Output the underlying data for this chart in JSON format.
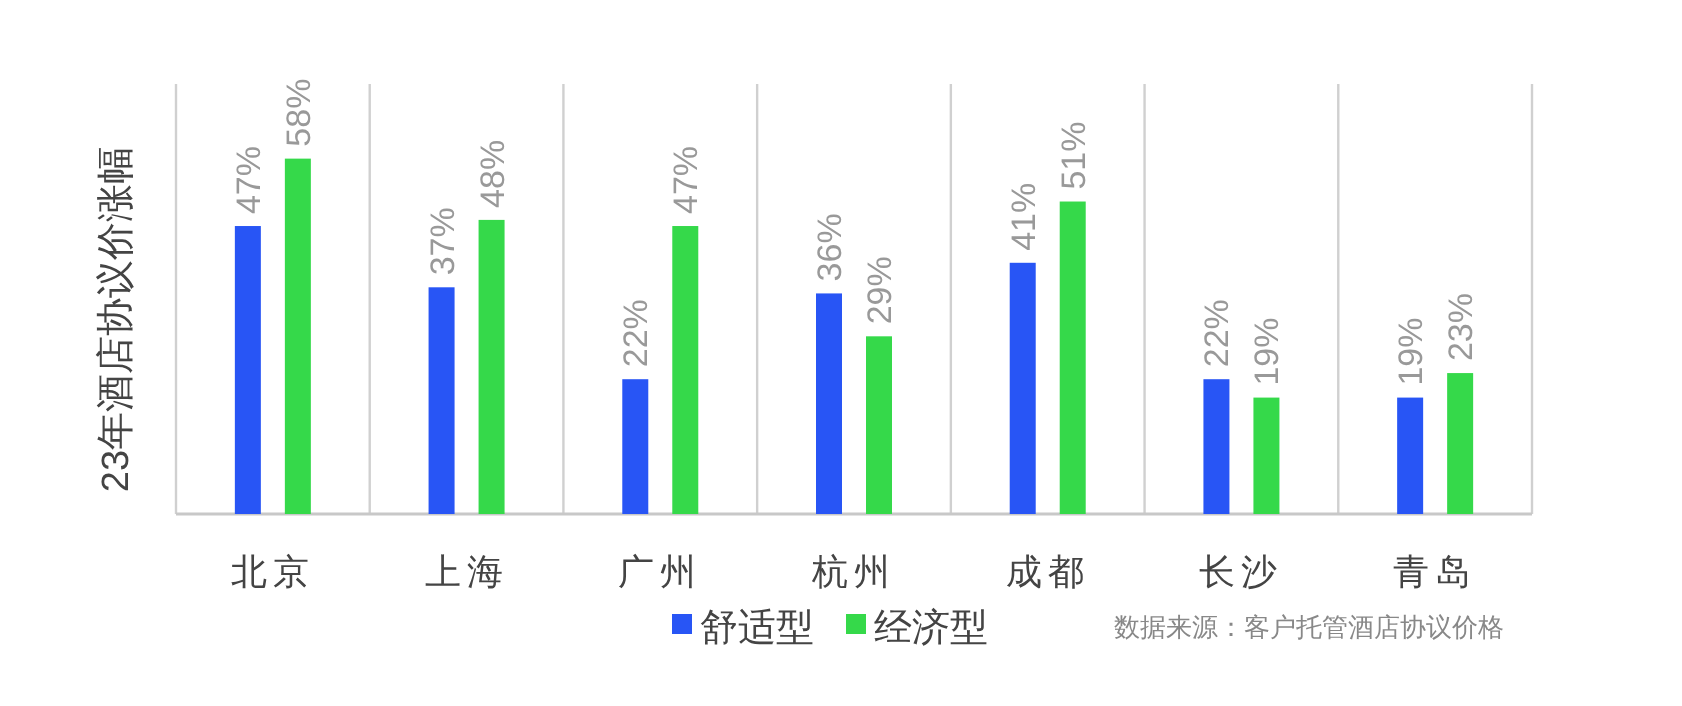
{
  "chart_data": {
    "type": "bar",
    "ylabel": "23年酒店协议价涨幅",
    "categories": [
      "北京",
      "上海",
      "广州",
      "杭州",
      "成都",
      "长沙",
      "青岛"
    ],
    "series": [
      {
        "name": "舒适型",
        "color": "#2855f5",
        "values": [
          47,
          37,
          22,
          36,
          41,
          22,
          19
        ],
        "value_labels": [
          "47%",
          "37%",
          "22%",
          "36%",
          "41%",
          "22%",
          "19%"
        ]
      },
      {
        "name": "经济型",
        "color": "#35d94a",
        "values": [
          58,
          48,
          47,
          29,
          51,
          19,
          23
        ],
        "value_labels": [
          "58%",
          "48%",
          "47%",
          "29%",
          "51%",
          "19%",
          "23%"
        ]
      }
    ],
    "grid": "x",
    "legend": "bottom",
    "annotations": [
      "数据来源：客户托管酒店协议价格"
    ]
  }
}
